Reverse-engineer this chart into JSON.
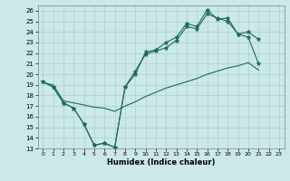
{
  "xlabel": "Humidex (Indice chaleur)",
  "background_color": "#cce8e8",
  "grid_color": "#a8d0d0",
  "line_color": "#1a6b5a",
  "xlim": [
    -0.5,
    23.5
  ],
  "ylim": [
    13,
    26.5
  ],
  "xticks": [
    0,
    1,
    2,
    3,
    4,
    5,
    6,
    7,
    8,
    9,
    10,
    11,
    12,
    13,
    14,
    15,
    16,
    17,
    18,
    19,
    20,
    21,
    22,
    23
  ],
  "yticks": [
    13,
    14,
    15,
    16,
    17,
    18,
    19,
    20,
    21,
    22,
    23,
    24,
    25,
    26
  ],
  "line1_x": [
    0,
    1,
    2,
    3,
    4,
    5,
    6,
    7,
    8,
    9,
    10,
    11,
    12,
    13,
    14,
    15,
    16,
    17,
    18,
    19,
    20,
    21
  ],
  "line1_y": [
    19.3,
    18.8,
    17.3,
    16.8,
    15.3,
    13.3,
    13.5,
    13.1,
    18.8,
    20.3,
    21.9,
    22.2,
    22.5,
    23.2,
    24.5,
    24.3,
    25.7,
    25.3,
    25.0,
    23.8,
    23.5,
    21.0
  ],
  "line2_x": [
    0,
    1,
    2,
    3,
    4,
    5,
    6,
    7,
    8,
    9,
    10,
    11,
    12,
    13,
    14,
    15,
    16,
    17,
    18,
    19,
    20,
    21
  ],
  "line2_y": [
    19.3,
    18.8,
    17.3,
    16.8,
    15.3,
    13.3,
    13.5,
    13.1,
    18.8,
    20.0,
    22.1,
    22.3,
    23.0,
    23.5,
    24.8,
    24.5,
    26.1,
    25.2,
    25.3,
    23.8,
    24.0,
    23.3
  ],
  "line3_x": [
    0,
    1,
    2,
    3,
    4,
    5,
    6,
    7,
    8,
    9,
    10,
    11,
    12,
    13,
    14,
    15,
    16,
    17,
    18,
    19,
    20,
    21
  ],
  "line3_y": [
    19.2,
    19.0,
    17.5,
    17.3,
    17.1,
    16.9,
    16.8,
    16.5,
    17.0,
    17.4,
    17.9,
    18.3,
    18.7,
    19.0,
    19.3,
    19.6,
    20.0,
    20.3,
    20.6,
    20.8,
    21.1,
    20.4
  ]
}
